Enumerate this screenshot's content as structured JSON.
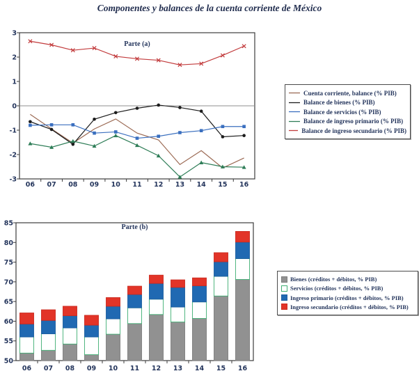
{
  "title": "Componentes y balances de la cuenta corriente de México",
  "colors": {
    "text": "#24355c",
    "frame": "#3c3c3c",
    "zero_line": "#8f8f8f",
    "background": "#ffffff"
  },
  "chart_data": [
    {
      "type": "line",
      "title": "Parte (a)",
      "x_categories": [
        "06",
        "07",
        "08",
        "09",
        "10",
        "11",
        "12",
        "13",
        "14",
        "15",
        "16"
      ],
      "ylim": [
        -3,
        3
      ],
      "yticks": [
        3,
        2,
        1,
        0,
        -1,
        -2,
        -3
      ],
      "zero_line": true,
      "legend_position": "right-outside",
      "series": [
        {
          "name": "Cuenta corriente, balance (% PIB)",
          "color": "#9c6b55",
          "marker": "none",
          "values": [
            -0.35,
            -0.95,
            -1.53,
            -0.95,
            -0.54,
            -1.12,
            -1.4,
            -2.41,
            -1.84,
            -2.55,
            -2.14
          ]
        },
        {
          "name": "Balance de bienes (% PIB)",
          "color": "#1c1c1c",
          "marker": "circle",
          "values": [
            -0.65,
            -0.97,
            -1.58,
            -0.55,
            -0.28,
            -0.1,
            0.03,
            -0.07,
            -0.22,
            -1.27,
            -1.22
          ]
        },
        {
          "name": "Balance de servicios (% PIB)",
          "color": "#3a6fbf",
          "marker": "square",
          "values": [
            -0.8,
            -0.78,
            -0.78,
            -1.12,
            -1.07,
            -1.33,
            -1.25,
            -1.1,
            -1.02,
            -0.85,
            -0.85
          ]
        },
        {
          "name": "Balance de ingreso primario (% PIB)",
          "color": "#2e7d57",
          "marker": "triangle",
          "values": [
            -1.55,
            -1.7,
            -1.45,
            -1.65,
            -1.22,
            -1.62,
            -2.05,
            -2.92,
            -2.33,
            -2.5,
            -2.52
          ]
        },
        {
          "name": "Balance de ingreso secundario (% PIB)",
          "color": "#c23b3c",
          "marker": "x",
          "values": [
            2.65,
            2.5,
            2.28,
            2.37,
            2.03,
            1.93,
            1.87,
            1.68,
            1.73,
            2.07,
            2.45
          ]
        }
      ]
    },
    {
      "type": "stacked_bar",
      "title": "Parte (b)",
      "x_categories": [
        "06",
        "07",
        "08",
        "09",
        "10",
        "11",
        "12",
        "13",
        "14",
        "15",
        "16"
      ],
      "ylim": [
        50,
        85
      ],
      "yticks": [
        85,
        80,
        75,
        70,
        65,
        60,
        55,
        50
      ],
      "bar_base": 0,
      "legend_position": "right-outside",
      "series": [
        {
          "name": "Bienes (créditos + débitos, % PIB)",
          "fill": "#919191",
          "stroke": "#7e7e7e",
          "swatch": "filled-square",
          "values": [
            51.9,
            52.6,
            54.2,
            51.5,
            56.7,
            59.4,
            61.7,
            59.8,
            60.7,
            66.4,
            70.6
          ]
        },
        {
          "name": "Servicios (créditos + débitos, % PIB)",
          "fill": "#ffffff",
          "stroke": "#3fae73",
          "swatch": "outlined-square",
          "values": [
            4.1,
            4.2,
            4.1,
            4.5,
            3.9,
            4.0,
            3.9,
            3.8,
            4.2,
            5.0,
            5.3
          ]
        },
        {
          "name": "Ingreso primario (créditos + débitos, % PIB)",
          "fill": "#2069b2",
          "stroke": "#1d5f9f",
          "swatch": "filled-square",
          "values": [
            3.3,
            3.4,
            3.1,
            3.0,
            3.2,
            3.4,
            4.0,
            5.0,
            4.1,
            3.7,
            4.2
          ]
        },
        {
          "name": "Ingreso secundario (créditos + débitos, % PIB)",
          "fill": "#e23428",
          "stroke": "#cb2b20",
          "swatch": "filled-square",
          "values": [
            2.8,
            2.7,
            2.4,
            2.5,
            2.2,
            2.1,
            2.1,
            1.9,
            2.0,
            2.3,
            2.7
          ]
        }
      ]
    }
  ]
}
